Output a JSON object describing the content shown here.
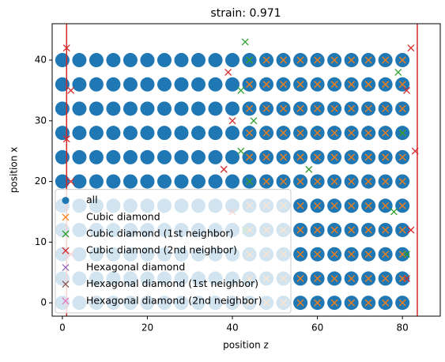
{
  "chart_data": {
    "type": "scatter",
    "title": "strain: 0.971",
    "x_label": "position z",
    "y_label": "position x",
    "xlim": [
      -2.4,
      88.9
    ],
    "ylim": [
      -2.2,
      46
    ],
    "xticks": [
      0,
      20,
      40,
      60,
      80
    ],
    "yticks": [
      0,
      10,
      20,
      30,
      40
    ],
    "vlines": [
      1,
      83.5
    ],
    "vline_color": "#d62728",
    "legend_position": "lower left",
    "series": [
      {
        "name": "all",
        "color": "#1f77b4",
        "marker": "o",
        "x": [
          0,
          4,
          8,
          12,
          16,
          20,
          24,
          28,
          32,
          36,
          40,
          44,
          48,
          52,
          56,
          60,
          64,
          68,
          72,
          76,
          80,
          0,
          4,
          8,
          12,
          16,
          20,
          24,
          28,
          32,
          36,
          40,
          44,
          48,
          52,
          56,
          60,
          64,
          68,
          72,
          76,
          80,
          0,
          4,
          8,
          12,
          16,
          20,
          24,
          28,
          32,
          36,
          40,
          44,
          48,
          52,
          56,
          60,
          64,
          68,
          72,
          76,
          80,
          0,
          4,
          8,
          12,
          16,
          20,
          24,
          28,
          32,
          36,
          40,
          44,
          48,
          52,
          56,
          60,
          64,
          68,
          72,
          76,
          80,
          0,
          4,
          8,
          12,
          16,
          20,
          24,
          28,
          32,
          36,
          40,
          44,
          48,
          52,
          56,
          60,
          64,
          68,
          72,
          76,
          80,
          0,
          4,
          8,
          12,
          16,
          20,
          24,
          28,
          32,
          36,
          40,
          44,
          48,
          52,
          56,
          60,
          64,
          68,
          72,
          76,
          80,
          0,
          4,
          8,
          12,
          16,
          20,
          24,
          28,
          32,
          36,
          40,
          44,
          48,
          52,
          56,
          60,
          64,
          68,
          72,
          76,
          80,
          0,
          4,
          8,
          12,
          16,
          20,
          24,
          28,
          32,
          36,
          40,
          44,
          48,
          52,
          56,
          60,
          64,
          68,
          72,
          76,
          80,
          0,
          4,
          8,
          12,
          16,
          20,
          24,
          28,
          32,
          36,
          40,
          44,
          48,
          52,
          56,
          60,
          64,
          68,
          72,
          76,
          80,
          0,
          4,
          8,
          12,
          16,
          20,
          24,
          28,
          32,
          36,
          40,
          44,
          48,
          52,
          56,
          60,
          64,
          68,
          72,
          76,
          80,
          0,
          4,
          8,
          12,
          16,
          20,
          24,
          28,
          32,
          36,
          40,
          44,
          48,
          52,
          56,
          60,
          64,
          68,
          72,
          76,
          80
        ],
        "y": [
          0,
          0,
          0,
          0,
          0,
          0,
          0,
          0,
          0,
          0,
          0,
          0,
          0,
          0,
          0,
          0,
          0,
          0,
          0,
          0,
          0,
          4,
          4,
          4,
          4,
          4,
          4,
          4,
          4,
          4,
          4,
          4,
          4,
          4,
          4,
          4,
          4,
          4,
          4,
          4,
          4,
          4,
          8,
          8,
          8,
          8,
          8,
          8,
          8,
          8,
          8,
          8,
          8,
          8,
          8,
          8,
          8,
          8,
          8,
          8,
          8,
          8,
          8,
          12,
          12,
          12,
          12,
          12,
          12,
          12,
          12,
          12,
          12,
          12,
          12,
          12,
          12,
          12,
          12,
          12,
          12,
          12,
          12,
          12,
          16,
          16,
          16,
          16,
          16,
          16,
          16,
          16,
          16,
          16,
          16,
          16,
          16,
          16,
          16,
          16,
          16,
          16,
          16,
          16,
          16,
          20,
          20,
          20,
          20,
          20,
          20,
          20,
          20,
          20,
          20,
          20,
          20,
          20,
          20,
          20,
          20,
          20,
          20,
          20,
          20,
          20,
          24,
          24,
          24,
          24,
          24,
          24,
          24,
          24,
          24,
          24,
          24,
          24,
          24,
          24,
          24,
          24,
          24,
          24,
          24,
          24,
          24,
          28,
          28,
          28,
          28,
          28,
          28,
          28,
          28,
          28,
          28,
          28,
          28,
          28,
          28,
          28,
          28,
          28,
          28,
          28,
          28,
          28,
          32,
          32,
          32,
          32,
          32,
          32,
          32,
          32,
          32,
          32,
          32,
          32,
          32,
          32,
          32,
          32,
          32,
          32,
          32,
          32,
          32,
          36,
          36,
          36,
          36,
          36,
          36,
          36,
          36,
          36,
          36,
          36,
          36,
          36,
          36,
          36,
          36,
          36,
          36,
          36,
          36,
          36,
          40,
          40,
          40,
          40,
          40,
          40,
          40,
          40,
          40,
          40,
          40,
          40,
          40,
          40,
          40,
          40,
          40,
          40,
          40,
          40,
          40
        ]
      },
      {
        "name": "Cubic diamond",
        "color": "#ff7f0e",
        "marker": "x",
        "x": [
          44,
          48,
          52,
          56,
          60,
          64,
          68,
          72,
          76,
          80,
          44,
          48,
          52,
          56,
          60,
          64,
          68,
          72,
          76,
          80,
          44,
          48,
          52,
          56,
          60,
          64,
          68,
          72,
          76,
          80,
          44,
          48,
          52,
          56,
          60,
          64,
          68,
          72,
          76,
          80,
          44,
          48,
          52,
          56,
          60,
          64,
          68,
          72,
          76,
          80,
          44,
          48,
          52,
          56,
          60,
          64,
          68,
          72,
          76,
          80,
          44,
          48,
          52,
          56,
          60,
          64,
          68,
          72,
          76,
          80,
          44,
          48,
          52,
          56,
          60,
          64,
          68,
          72,
          76,
          80,
          44,
          48,
          52,
          56,
          60,
          64,
          68,
          72,
          76,
          80,
          44,
          48,
          52,
          56,
          60,
          64,
          68,
          72,
          76,
          80,
          44,
          48,
          52,
          56,
          60,
          64,
          68,
          72,
          76,
          80
        ],
        "y": [
          0,
          0,
          0,
          0,
          0,
          0,
          0,
          0,
          0,
          0,
          4,
          4,
          4,
          4,
          4,
          4,
          4,
          4,
          4,
          4,
          8,
          8,
          8,
          8,
          8,
          8,
          8,
          8,
          8,
          8,
          12,
          12,
          12,
          12,
          12,
          12,
          12,
          12,
          12,
          12,
          16,
          16,
          16,
          16,
          16,
          16,
          16,
          16,
          16,
          16,
          20,
          20,
          20,
          20,
          20,
          20,
          20,
          20,
          20,
          20,
          24,
          24,
          24,
          24,
          24,
          24,
          24,
          24,
          24,
          24,
          28,
          28,
          28,
          28,
          28,
          28,
          28,
          28,
          28,
          28,
          32,
          32,
          32,
          32,
          32,
          32,
          32,
          32,
          32,
          32,
          36,
          36,
          36,
          36,
          36,
          36,
          36,
          36,
          36,
          36,
          40,
          40,
          40,
          40,
          40,
          40,
          40,
          40,
          40,
          40
        ]
      },
      {
        "name": "Cubic diamond (1st neighbor)",
        "color": "#2ca02c",
        "marker": "x",
        "x": [
          43,
          44,
          42,
          45,
          42,
          44,
          79,
          80,
          78,
          81,
          58,
          43
        ],
        "y": [
          43,
          40,
          35,
          30,
          25,
          20,
          38,
          28,
          15,
          8,
          22,
          12
        ]
      },
      {
        "name": "Cubic diamond (2nd neighbor)",
        "color": "#d62728",
        "marker": "x",
        "x": [
          1,
          2,
          1,
          2,
          39,
          40,
          38,
          40,
          82,
          81,
          83,
          82,
          81,
          2
        ],
        "y": [
          42,
          35,
          27,
          20,
          38,
          30,
          22,
          15,
          42,
          35,
          25,
          12,
          4,
          8
        ]
      },
      {
        "name": "Hexagonal diamond",
        "color": "#9467bd",
        "marker": "x",
        "x": [],
        "y": []
      },
      {
        "name": "Hexagonal diamond (1st neighbor)",
        "color": "#8c564b",
        "marker": "x",
        "x": [],
        "y": []
      },
      {
        "name": "Hexagonal diamond (2nd neighbor)",
        "color": "#e377c2",
        "marker": "x",
        "x": [],
        "y": []
      }
    ]
  }
}
